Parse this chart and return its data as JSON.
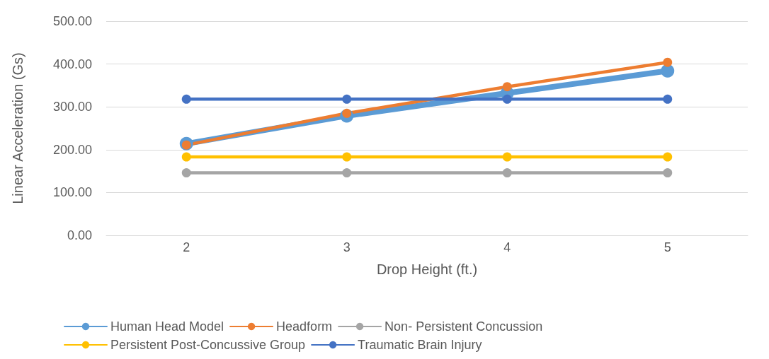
{
  "chart_data": {
    "type": "line",
    "xlabel": "Drop Height (ft.)",
    "ylabel": "Linear Acceleration (Gs)",
    "categories": [
      "2",
      "3",
      "4",
      "5"
    ],
    "series": [
      {
        "name": "Human Head Model",
        "color": "#5b9bd5",
        "values": [
          214,
          279,
          332,
          384
        ]
      },
      {
        "name": "Headform",
        "color": "#ed7d31",
        "values": [
          211,
          285,
          347,
          404
        ]
      },
      {
        "name": "Non- Persistent Concussion",
        "color": "#a5a5a5",
        "values": [
          146,
          146,
          146,
          146
        ]
      },
      {
        "name": "Persistent Post-Concussive Group",
        "color": "#ffc000",
        "values": [
          183,
          183,
          183,
          183
        ]
      },
      {
        "name": "Traumatic Brain Injury",
        "color": "#4472c4",
        "values": [
          318,
          318,
          318,
          318
        ]
      }
    ],
    "ylim": [
      0,
      500
    ],
    "yticks": [
      {
        "value": 0,
        "label": "0.00"
      },
      {
        "value": 100,
        "label": "100.00"
      },
      {
        "value": 200,
        "label": "200.00"
      },
      {
        "value": 300,
        "label": "300.00"
      },
      {
        "value": 400,
        "label": "400.00"
      },
      {
        "value": 500,
        "label": "500.00"
      }
    ],
    "grid": "y",
    "legend": "bottom",
    "marker": "circle",
    "line_style": "solid"
  }
}
